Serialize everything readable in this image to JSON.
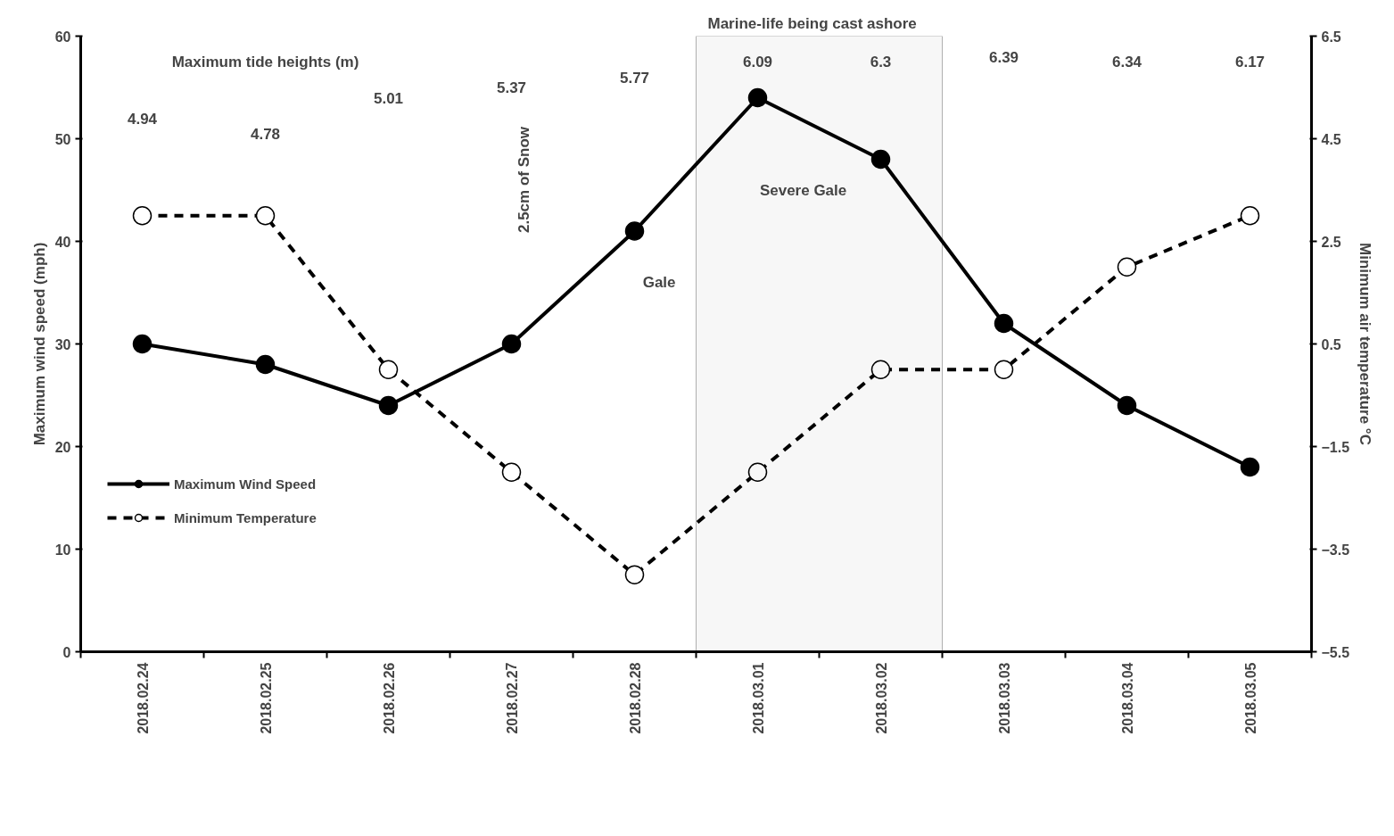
{
  "chart_data": {
    "type": "line",
    "categories": [
      "2018.02.24",
      "2018.02.25",
      "2018.02.26",
      "2018.02.27",
      "2018.02.28",
      "2018.03.01",
      "2018.03.02",
      "2018.03.03",
      "2018.03.04",
      "2018.03.05"
    ],
    "series": [
      {
        "name": "Maximum Wind Speed",
        "color": "#000000",
        "line_style": "solid",
        "values": [
          30,
          28,
          24,
          30,
          41,
          54,
          48,
          32,
          24,
          18
        ]
      },
      {
        "name": "Minimum Temperature",
        "color": "#000000",
        "line_style": "dashed",
        "axis": "y2",
        "values": [
          3.0,
          3.0,
          0.0,
          -2.0,
          -4.0,
          -2.0,
          0.0,
          0.0,
          2.0,
          3.0
        ]
      }
    ],
    "ylabel": "Maximum wind speed (mph)",
    "y2label": "Minimum air temperature °C",
    "ylim": [
      0,
      60
    ],
    "yticks": [
      0,
      10,
      20,
      30,
      40,
      50,
      60
    ],
    "y2lim": [
      -5.5,
      6.5
    ],
    "y2ticks": [
      -5.5,
      -3.5,
      -1.5,
      0.5,
      2.5,
      4.5,
      6.5
    ],
    "bands": [
      {
        "axis": "x",
        "from": "2018.03.01",
        "to": "2018.03.02",
        "label": "Marine-life being cast ashore"
      }
    ],
    "annotations": [
      "Maximum tide heights (m)",
      "4.94",
      "4.78",
      "5.01",
      "5.37",
      "5.77",
      "6.09",
      "6.3",
      "6.39",
      "6.34",
      "6.17",
      "2.5cm of Snow",
      "Gale",
      "Severe Gale"
    ],
    "marker": "circle",
    "grid": false,
    "legend": "left"
  }
}
